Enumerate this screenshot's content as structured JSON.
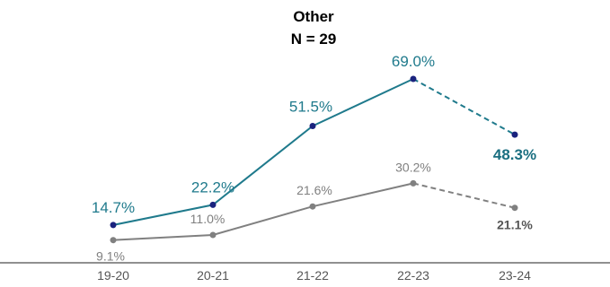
{
  "chart_data": {
    "type": "line",
    "title": "Other",
    "subtitle": "N = 29",
    "categories": [
      "19-20",
      "20-21",
      "21-22",
      "22-23",
      "23-24"
    ],
    "ylim": [
      0,
      80
    ],
    "grid": false,
    "series": [
      {
        "color": "#1f7a8c",
        "marker_color": "#1a237e",
        "values": [
          14.7,
          22.2,
          51.5,
          69.0,
          48.3
        ],
        "labels": [
          "14.7%",
          "22.2%",
          "51.5%",
          "69.0%",
          "48.3%"
        ],
        "last_segment_dashed": true,
        "last_label_bold": true
      },
      {
        "color": "#808080",
        "marker_color": "#808080",
        "values": [
          9.1,
          11.0,
          21.6,
          30.2,
          21.1
        ],
        "labels": [
          "9.1%",
          "11.0%",
          "21.6%",
          "30.2%",
          "21.1%"
        ],
        "last_segment_dashed": true,
        "last_label_bold": true
      }
    ]
  }
}
